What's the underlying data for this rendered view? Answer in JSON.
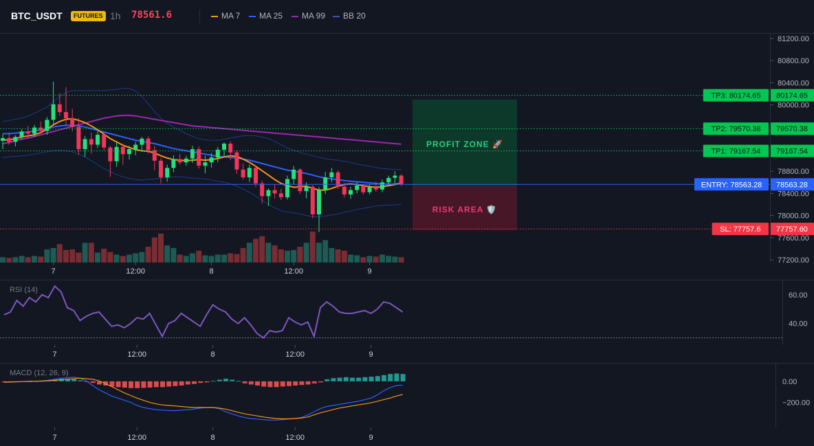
{
  "header": {
    "symbol": "BTC_USDT",
    "badge": "FUTURES",
    "timeframe": "1h",
    "price": "78561.6",
    "legend": [
      {
        "label": "MA 7",
        "color": "#f7931a"
      },
      {
        "label": "MA 25",
        "color": "#2962ff"
      },
      {
        "label": "MA 99",
        "color": "#9c27b0"
      },
      {
        "label": "BB 20",
        "color": "#1e3a8a"
      }
    ]
  },
  "colors": {
    "up": "#26a69a",
    "down": "#ef5350",
    "bg": "#131722",
    "ma7": "#f7931a",
    "ma25": "#2962ff",
    "ma99": "#9c27b0",
    "bb": "#1e3a8a",
    "rsi": "#7e57c2",
    "macd": "#2962ff",
    "signal": "#f7931a",
    "tp": "#00c853",
    "sl": "#f23645",
    "entry": "#2962ff"
  },
  "price_axis": {
    "ticks": [
      "81200.00",
      "80800.00",
      "80400.00",
      "80000.00",
      "78800.00",
      "78400.00",
      "78000.00",
      "77600.00",
      "77200.00"
    ]
  },
  "time_axis": {
    "labels": [
      "7",
      "12:00",
      "8",
      "12:00",
      "9"
    ]
  },
  "levels": [
    {
      "label": "TP3: 80174.65",
      "value_label": "80174.65",
      "value": 80174.65,
      "kind": "tp"
    },
    {
      "label": "TP2: 79570.38",
      "value_label": "79570.38",
      "value": 79570.38,
      "kind": "tp"
    },
    {
      "label": "TP1: 79167.54",
      "value_label": "79167.54",
      "value": 79167.54,
      "kind": "tp"
    },
    {
      "label": "ENTRY: 78563.28",
      "value_label": "78563.28",
      "value": 78563.28,
      "kind": "entry"
    },
    {
      "label": "SL: 77757.6",
      "value_label": "77757.60",
      "value": 77757.6,
      "kind": "sl"
    }
  ],
  "zones": {
    "profit_label": "PROFIT ZONE 🚀",
    "risk_label": "RISK AREA 🛡️"
  },
  "rsi": {
    "label": "RSI (14)",
    "ticks": [
      "60.00",
      "40.00"
    ]
  },
  "macd": {
    "label": "MACD (12, 26, 9)",
    "ticks": [
      "0.00",
      "−200.00"
    ]
  },
  "chart_data": [
    {
      "type": "candlestick",
      "title": "",
      "candles_ohlc": [
        [
          79350,
          79470,
          79200,
          79400
        ],
        [
          79400,
          79500,
          79280,
          79330
        ],
        [
          79330,
          79450,
          79250,
          79420
        ],
        [
          79420,
          79560,
          79380,
          79520
        ],
        [
          79520,
          79620,
          79400,
          79480
        ],
        [
          79480,
          79640,
          79420,
          79590
        ],
        [
          79590,
          79700,
          79480,
          79530
        ],
        [
          79530,
          79780,
          79460,
          79730
        ],
        [
          79730,
          80420,
          79650,
          80010
        ],
        [
          80010,
          80210,
          79800,
          79870
        ],
        [
          79870,
          80320,
          79620,
          79760
        ],
        [
          79760,
          79930,
          79520,
          79600
        ],
        [
          79600,
          79760,
          79100,
          79200
        ],
        [
          79200,
          79440,
          79060,
          79380
        ],
        [
          79380,
          79500,
          79120,
          79280
        ],
        [
          79280,
          79520,
          79220,
          79460
        ],
        [
          79460,
          79510,
          79180,
          79230
        ],
        [
          79230,
          79260,
          78700,
          78980
        ],
        [
          78980,
          79320,
          78880,
          79240
        ],
        [
          79240,
          79300,
          78920,
          79110
        ],
        [
          79110,
          79260,
          79010,
          79200
        ],
        [
          79200,
          79330,
          79090,
          79280
        ],
        [
          79280,
          79420,
          79150,
          79390
        ],
        [
          79390,
          79430,
          79120,
          79180
        ],
        [
          79180,
          79260,
          78820,
          78990
        ],
        [
          78990,
          79040,
          78580,
          78690
        ],
        [
          78690,
          78920,
          78610,
          78860
        ],
        [
          78860,
          79090,
          78780,
          79020
        ],
        [
          79020,
          79110,
          78920,
          78960
        ],
        [
          78960,
          79080,
          78900,
          79030
        ],
        [
          79030,
          79260,
          78950,
          79200
        ],
        [
          79200,
          79250,
          78850,
          78900
        ],
        [
          78900,
          79080,
          78760,
          78960
        ],
        [
          78960,
          79130,
          78870,
          79050
        ],
        [
          79050,
          79240,
          78960,
          79190
        ],
        [
          79190,
          79320,
          79060,
          79300
        ],
        [
          79300,
          79340,
          79000,
          79140
        ],
        [
          79140,
          79180,
          78750,
          78830
        ],
        [
          78830,
          78940,
          78650,
          78690
        ],
        [
          78690,
          78920,
          78610,
          78860
        ],
        [
          78860,
          78900,
          78520,
          78580
        ],
        [
          78580,
          78630,
          78220,
          78350
        ],
        [
          78350,
          78490,
          78170,
          78460
        ],
        [
          78460,
          78560,
          78310,
          78400
        ],
        [
          78400,
          78480,
          78280,
          78330
        ],
        [
          78330,
          78720,
          78290,
          78660
        ],
        [
          78660,
          78900,
          78560,
          78830
        ],
        [
          78830,
          78860,
          78390,
          78440
        ],
        [
          78440,
          78600,
          78310,
          78520
        ],
        [
          78520,
          78550,
          77950,
          78020
        ],
        [
          78020,
          78510,
          77700,
          78460
        ],
        [
          78460,
          78790,
          78390,
          78690
        ],
        [
          78690,
          78860,
          78600,
          78780
        ],
        [
          78780,
          78820,
          78480,
          78520
        ],
        [
          78520,
          78590,
          78320,
          78380
        ],
        [
          78380,
          78520,
          78300,
          78460
        ],
        [
          78460,
          78600,
          78400,
          78540
        ],
        [
          78540,
          78570,
          78380,
          78420
        ],
        [
          78420,
          78560,
          78380,
          78510
        ],
        [
          78510,
          78610,
          78430,
          78470
        ],
        [
          78470,
          78650,
          78420,
          78600
        ],
        [
          78600,
          78720,
          78550,
          78680
        ],
        [
          78680,
          78800,
          78580,
          78720
        ],
        [
          78720,
          78750,
          78530,
          78560
        ]
      ],
      "ma7": [
        79360,
        79370,
        79390,
        79420,
        79440,
        79460,
        79500,
        79560,
        79640,
        79700,
        79740,
        79750,
        79720,
        79680,
        79620,
        79550,
        79470,
        79390,
        79330,
        79270,
        79230,
        79190,
        79170,
        79160,
        79130,
        79080,
        79040,
        79010,
        79000,
        78990,
        79000,
        79010,
        79000,
        79010,
        79030,
        79060,
        79080,
        79070,
        79020,
        78960,
        78890,
        78810,
        78730,
        78650,
        78580,
        78540,
        78510,
        78520,
        78530,
        78490,
        78460,
        78460,
        78490,
        78530,
        78560,
        78570,
        78560,
        78540,
        78520,
        78510,
        78520,
        78540,
        78560,
        78580
      ],
      "ma25": [
        79480,
        79480,
        79490,
        79500,
        79510,
        79530,
        79550,
        79570,
        79600,
        79620,
        79630,
        79630,
        79620,
        79600,
        79570,
        79540,
        79510,
        79480,
        79450,
        79420,
        79390,
        79360,
        79340,
        79320,
        79300,
        79270,
        79240,
        79210,
        79190,
        79170,
        79150,
        79130,
        79110,
        79090,
        79070,
        79060,
        79050,
        79040,
        79020,
        79000,
        78970,
        78940,
        78910,
        78880,
        78850,
        78820,
        78800,
        78780,
        78760,
        78730,
        78700,
        78680,
        78660,
        78650,
        78630,
        78620,
        78610,
        78600,
        78590,
        78580,
        78570,
        78570,
        78570,
        78580
      ],
      "ma99": [
        79300,
        79320,
        79350,
        79380,
        79400,
        79430,
        79460,
        79490,
        79520,
        79550,
        79580,
        79610,
        79640,
        79670,
        79700,
        79730,
        79760,
        79780,
        79800,
        79810,
        79810,
        79800,
        79780,
        79760,
        79740,
        79720,
        79700,
        79680,
        79660,
        79640,
        79620,
        79610,
        79600,
        79590,
        79580,
        79570,
        79560,
        79550,
        79540,
        79530,
        79520,
        79510,
        79500,
        79490,
        79480,
        79470,
        79460,
        79450,
        79440,
        79430,
        79420,
        79410,
        79400,
        79390,
        79380,
        79370,
        79360,
        79350,
        79340,
        79330,
        79320,
        79310,
        79300,
        79290
      ],
      "bb_upper": [
        79700,
        79720,
        79740,
        79760,
        79800,
        79850,
        79900,
        79960,
        80060,
        80150,
        80220,
        80260,
        80260,
        80260,
        80260,
        80260,
        80260,
        80270,
        80280,
        80300,
        80300,
        80250,
        80150,
        80020,
        79880,
        79760,
        79670,
        79600,
        79540,
        79480,
        79430,
        79390,
        79370,
        79360,
        79360,
        79380,
        79400,
        79420,
        79440,
        79450,
        79440,
        79420,
        79390,
        79340,
        79280,
        79220,
        79180,
        79140,
        79110,
        79080,
        79050,
        79030,
        79010,
        79000,
        78980,
        78960,
        78930,
        78910,
        78890,
        78870,
        78850,
        78840,
        78830,
        78830
      ],
      "bb_lower": [
        79050,
        79060,
        79070,
        79080,
        79090,
        79110,
        79130,
        79150,
        79170,
        79180,
        79170,
        79150,
        79110,
        79060,
        78990,
        78920,
        78850,
        78790,
        78740,
        78700,
        78670,
        78650,
        78640,
        78650,
        78660,
        78680,
        78690,
        78700,
        78700,
        78690,
        78680,
        78670,
        78660,
        78640,
        78620,
        78600,
        78570,
        78530,
        78480,
        78420,
        78350,
        78280,
        78200,
        78140,
        78090,
        78060,
        78050,
        78030,
        78000,
        77980,
        77980,
        77990,
        78010,
        78030,
        78060,
        78080,
        78110,
        78130,
        78150,
        78170,
        78180,
        78190,
        78190,
        78200
      ],
      "volume": [
        8,
        7,
        8,
        10,
        8,
        10,
        9,
        20,
        22,
        28,
        19,
        20,
        15,
        30,
        30,
        15,
        21,
        16,
        12,
        10,
        12,
        14,
        16,
        24,
        38,
        44,
        26,
        22,
        12,
        10,
        14,
        18,
        11,
        10,
        12,
        12,
        14,
        13,
        22,
        30,
        36,
        40,
        30,
        26,
        20,
        18,
        19,
        24,
        30,
        47,
        30,
        34,
        22,
        20,
        18,
        12,
        11,
        8,
        10,
        9,
        12,
        10,
        9,
        8
      ],
      "price_ylim": [
        77150,
        81300
      ]
    },
    {
      "type": "line",
      "title": "",
      "series": [
        {
          "values": [
            46,
            48,
            56,
            52,
            58,
            55,
            60,
            58,
            66,
            62,
            51,
            49,
            42,
            45,
            47,
            48,
            43,
            38,
            39,
            37,
            40,
            44,
            43,
            47,
            39,
            31,
            40,
            42,
            47,
            44,
            41,
            38,
            46,
            53,
            50,
            48,
            43,
            40,
            44,
            39,
            33,
            30,
            35,
            34,
            35,
            44,
            41,
            39,
            41,
            31,
            51,
            55,
            52,
            48,
            47,
            47,
            48,
            49,
            47,
            50,
            55,
            54,
            51,
            48
          ]
        }
      ],
      "ylim": [
        25,
        70
      ]
    },
    {
      "type": "bar",
      "title": "",
      "series": [
        {
          "values": [
            -10,
            -5,
            -4,
            -2,
            0,
            2,
            5,
            10,
            18,
            25,
            22,
            20,
            10,
            -5,
            -15,
            -30,
            -40,
            -50,
            -55,
            -60,
            -65,
            -65,
            -62,
            -60,
            -55,
            -55,
            -50,
            -45,
            -40,
            -30,
            -25,
            -15,
            -10,
            5,
            15,
            25,
            15,
            5,
            -20,
            -30,
            -40,
            -50,
            -55,
            -55,
            -50,
            -45,
            -40,
            -35,
            -30,
            -20,
            -10,
            20,
            30,
            35,
            40,
            35,
            35,
            40,
            45,
            50,
            60,
            70,
            75,
            70
          ]
        },
        {
          "values": [
            -10,
            -8,
            -5,
            -3,
            0,
            2,
            5,
            10,
            20,
            30,
            35,
            40,
            30,
            5,
            -40,
            -80,
            -110,
            -140,
            -160,
            -180,
            -200,
            -230,
            -250,
            -260,
            -270,
            -275,
            -278,
            -280,
            -275,
            -270,
            -265,
            -255,
            -250,
            -250,
            -260,
            -290,
            -310,
            -330,
            -345,
            -355,
            -360,
            -365,
            -370,
            -370,
            -365,
            -360,
            -355,
            -345,
            -320,
            -290,
            -260,
            -240,
            -230,
            -220,
            -210,
            -200,
            -190,
            -175,
            -160,
            -130,
            -90,
            -60,
            -40,
            -35
          ]
        },
        {
          "values": [
            -8,
            -6,
            -4,
            -2,
            0,
            1,
            3,
            6,
            10,
            15,
            20,
            26,
            30,
            25,
            20,
            5,
            -20,
            -50,
            -80,
            -110,
            -135,
            -160,
            -180,
            -200,
            -215,
            -225,
            -230,
            -235,
            -240,
            -245,
            -250,
            -250,
            -250,
            -250,
            -255,
            -265,
            -280,
            -295,
            -310,
            -320,
            -330,
            -340,
            -348,
            -355,
            -358,
            -358,
            -355,
            -350,
            -340,
            -320,
            -300,
            -285,
            -270,
            -255,
            -245,
            -235,
            -225,
            -215,
            -205,
            -190,
            -175,
            -160,
            -140,
            -125
          ]
        }
      ],
      "ylim": [
        -440,
        170
      ]
    }
  ]
}
